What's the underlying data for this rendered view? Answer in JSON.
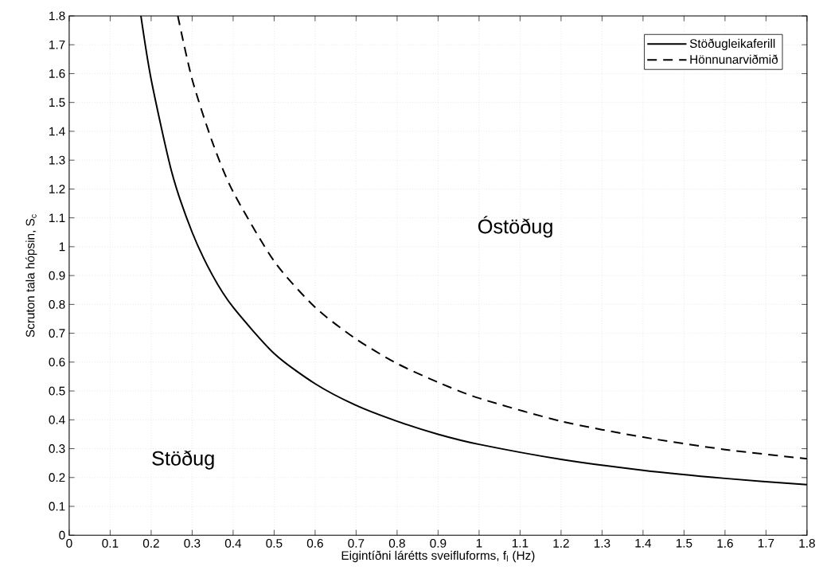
{
  "chart_data": {
    "type": "line",
    "xlabel": "Eigintíðni lárétts sveifluforms, f$_{l}$ (Hz)",
    "ylabel": "Scruton tala hópsin, S$_{c}$",
    "xlim": [
      0,
      1.8
    ],
    "ylim": [
      0,
      1.8
    ],
    "xticks": [
      0,
      0.1,
      0.2,
      0.3,
      0.4,
      0.5,
      0.6,
      0.7,
      0.8,
      0.9,
      1,
      1.1,
      1.2,
      1.3,
      1.4,
      1.5,
      1.6,
      1.7,
      1.8
    ],
    "yticks": [
      0,
      0.1,
      0.2,
      0.3,
      0.4,
      0.5,
      0.6,
      0.7,
      0.8,
      0.9,
      1,
      1.1,
      1.2,
      1.3,
      1.4,
      1.5,
      1.6,
      1.7,
      1.8
    ],
    "grid": true,
    "legend": "top right",
    "marker": "none",
    "series": [
      {
        "name": "Stöðugleikaferill",
        "color": "#000000",
        "line_style": "solid",
        "x": [
          0.175,
          0.2,
          0.25,
          0.3,
          0.35,
          0.4,
          0.5,
          0.6,
          0.7,
          0.8,
          0.9,
          1.0,
          1.2,
          1.4,
          1.6,
          1.8
        ],
        "values": [
          1.8,
          1.58,
          1.26,
          1.05,
          0.9,
          0.79,
          0.63,
          0.525,
          0.45,
          0.395,
          0.35,
          0.315,
          0.263,
          0.225,
          0.197,
          0.175
        ]
      },
      {
        "name": "Hönnunarviðmið",
        "color": "#000000",
        "line_style": "dashed",
        "x": [
          0.265,
          0.3,
          0.35,
          0.4,
          0.5,
          0.6,
          0.7,
          0.8,
          0.9,
          1.0,
          1.2,
          1.4,
          1.6,
          1.8
        ],
        "values": [
          1.8,
          1.58,
          1.36,
          1.19,
          0.95,
          0.79,
          0.68,
          0.595,
          0.53,
          0.475,
          0.395,
          0.34,
          0.297,
          0.265
        ]
      }
    ],
    "annotations": [
      "Óstöðug",
      "Stöðug"
    ]
  }
}
